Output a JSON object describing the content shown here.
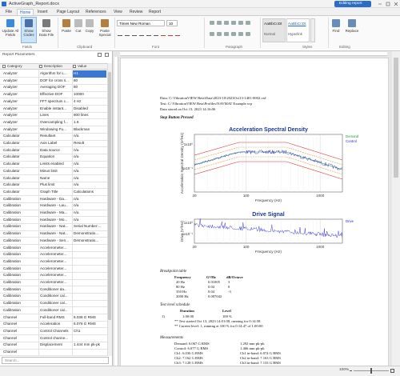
{
  "titlebar": {
    "title": "ActiveGraph_Report.docx",
    "mode": "Editing report"
  },
  "menu": [
    "File",
    "Home",
    "Insert",
    "Page Layout",
    "References",
    "View",
    "Review",
    "Report"
  ],
  "ribbon": {
    "fields": {
      "label": "Fields",
      "buttons": [
        "Update All Fields",
        "Show Codes",
        "Show Data File"
      ]
    },
    "clipboard": {
      "label": "Clipboard",
      "buttons": [
        "Paste",
        "Cut",
        "Copy",
        "Paste Special"
      ]
    },
    "font": {
      "label": "Font",
      "name": "Times New Roman",
      "size": "10"
    },
    "paragraph": {
      "label": "Paragraph"
    },
    "styles": {
      "label": "Styles",
      "items": [
        {
          "sample": "AaBbCcDt",
          "name": "Normal"
        },
        {
          "sample": "AaBbCcDt",
          "name": "Hyperlink"
        }
      ]
    },
    "editing": {
      "label": "Editing",
      "buttons": [
        "Find",
        "Replace"
      ]
    }
  },
  "panel": {
    "title": "Report Parameters",
    "columns": [
      "Category",
      "Description",
      "Value"
    ],
    "rows": [
      [
        "Analyzer",
        "Algorithm for L...",
        "H1"
      ],
      [
        "Analyzer",
        "DOF for cross s...",
        "80"
      ],
      [
        "Analyzer",
        "Averaging DOF",
        "80"
      ],
      [
        "Analyzer",
        "Effective DOF",
        "10000"
      ],
      [
        "Analyzer",
        "FFT spectrum c...",
        "4 Hz"
      ],
      [
        "Analyzer",
        "Enable instant...",
        "Disabled"
      ],
      [
        "Analyzer",
        "Lines",
        "800 lines"
      ],
      [
        "Analyzer",
        "Overcampling f...",
        "1.6"
      ],
      [
        "Analyzer",
        "Windowing Fu...",
        "Blackman"
      ],
      [
        "Calculator",
        "Resultant",
        "n/a"
      ],
      [
        "Calculator",
        "Axis Label",
        "Result"
      ],
      [
        "Calculator",
        "Data source",
        "n/a"
      ],
      [
        "Calculator",
        "Equation",
        "n/a"
      ],
      [
        "Calculator",
        "Limits enabled",
        "n/a"
      ],
      [
        "Calculator",
        "Minus limit",
        "n/a"
      ],
      [
        "Calculator",
        "Name",
        "n/a"
      ],
      [
        "Calculator",
        "Plus limit",
        "n/a"
      ],
      [
        "Calculator",
        "Graph Title",
        "Calculations"
      ],
      [
        "Calibration",
        "Hardware - Da...",
        "n/a"
      ],
      [
        "Calibration",
        "Hardware - Lau...",
        "n/a"
      ],
      [
        "Calibration",
        "Hardware - Ma...",
        "n/a"
      ],
      [
        "Calibration",
        "Hardware - Mo...",
        "n/a"
      ],
      [
        "Calibration",
        "Hardware - Nat...",
        "Serial Number:..."
      ],
      [
        "Calibration",
        "Hardware - Nat...",
        "Demonstratio..."
      ],
      [
        "Calibration",
        "Hardware - Sen...",
        "Demonstratio..."
      ],
      [
        "Calibration",
        "Accelerometer..."
      ],
      [
        "Calibration",
        "Accelerometer..."
      ],
      [
        "Calibration",
        "Accelerometer..."
      ],
      [
        "Calibration",
        "Accelerometer..."
      ],
      [
        "Calibration",
        "Accelerometer..."
      ],
      [
        "Calibration",
        "Accelerometer..."
      ],
      [
        "Calibration",
        "Conditioner da..."
      ],
      [
        "Calibration",
        "Conditioner cal..."
      ],
      [
        "Calibration",
        "Conditioner cal..."
      ],
      [
        "Calibration",
        "Conditioner cal..."
      ],
      [
        "Channel",
        "Full-band RMS",
        "6.036 G RMS"
      ],
      [
        "Channel",
        "Acceleration",
        "6.076 G RMS"
      ],
      [
        "Channel",
        "Control Channels",
        "Ch1"
      ],
      [
        "Channel",
        "Control channe..."
      ],
      [
        "Channel",
        "Displacement",
        "1.444 mm pk-pk"
      ],
      [
        "Channel"
      ]
    ],
    "search": "Search..."
  },
  "document": {
    "header_lines": [
      "Data: C:\\VibrationVIEW Beta\\Data\\2023-10\\2023Oct13-1401-0002.vrd",
      "Test: C:\\VibrationVIEW Beta\\Profiles\\NAVMAT Example.vrp",
      "Data stored on Oct 13, 2023 14:16:06"
    ],
    "status": "Stop Button Pressed",
    "asd_plot": {
      "title": "Acceleration Spectral Density",
      "ylabel": "Acceleration Spectral Density (G²/Hz)",
      "xlabel": "Frequency (Hz)",
      "yticks": [
        "1x10⁰",
        "1x10⁻¹"
      ],
      "xticks": [
        "20",
        "100",
        "1000"
      ],
      "legend": [
        "Demand",
        "Control"
      ]
    },
    "drive_plot": {
      "title": "Drive Signal",
      "ylabel": "Drive (V²/Hz)",
      "xlabel": "Frequency (Hz)",
      "yticks": [
        "1x10⁰",
        "1x10⁻¹"
      ],
      "xticks": [
        "20",
        "100",
        "1000"
      ],
      "legend": [
        "Drive"
      ]
    },
    "breakpoints": {
      "title": "Breakpoint table",
      "columns": [
        "Frequency",
        "G²/Hz",
        "dB/Octave"
      ],
      "rows": [
        [
          "20 Hz",
          "0.01005",
          "3"
        ],
        [
          "80 Hz",
          "0.04",
          "0"
        ],
        [
          "350 Hz",
          "0.04",
          "-3"
        ],
        [
          "2000 Hz",
          "0.007042"
        ]
      ]
    },
    "schedule": {
      "title": "Test level schedule",
      "columns": [
        "Duration",
        "Level"
      ],
      "rows": [
        [
          "1)",
          "1:00:00",
          "100 %"
        ]
      ],
      "notes": [
        "** Test started Oct 13, 2023 14:01:08, running for 0:14:58",
        "** Current level: 1, running at 100 % for 0:14:47 of 1:00:00"
      ]
    },
    "measurements": {
      "title": "Measurements",
      "rows": [
        [
          "Demand: 6.067 G RMS",
          "1.292 mm pk-pk"
        ],
        [
          "Control: 6.077 G RMS",
          "1.466 mm pk-pk"
        ],
        [
          "Ch1: 6.036 G RMS",
          "Ch1 in-band: 6.074 G RMS"
        ],
        [
          "Ch2: 7.162 G RMS",
          "Ch2 in-band: 7.163 G RMS"
        ],
        [
          "Ch3: 7.128 G RMS",
          "Ch3 in-band: 7.133 G RMS"
        ]
      ]
    }
  },
  "statusbar": {
    "zoom": "100%"
  }
}
